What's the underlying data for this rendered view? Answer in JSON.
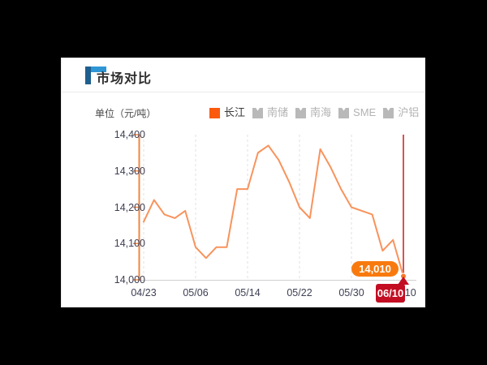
{
  "window": {
    "background_color": "#000000",
    "card_background_color": "#ffffff"
  },
  "header": {
    "title": "市场对比",
    "accent_color": "#2e96d5",
    "accent_dark_color": "#1d5f8e"
  },
  "chart_data": {
    "type": "line",
    "title": "市场对比",
    "unit_label": "单位（元/吨）",
    "legend_position": "top",
    "legend": [
      {
        "label": "长江",
        "active": true,
        "color": "#fb5a0e"
      },
      {
        "label": "南储",
        "active": false,
        "color": "#b9b9b9"
      },
      {
        "label": "南海",
        "active": false,
        "color": "#b9b9b9"
      },
      {
        "label": "SME",
        "active": false,
        "color": "#b9b9b9"
      },
      {
        "label": "沪铝",
        "active": false,
        "color": "#b9b9b9"
      }
    ],
    "x_tick_labels": [
      "04/23",
      "05/06",
      "05/14",
      "05/22",
      "05/30",
      "06/10"
    ],
    "tick_indices": [
      0,
      5,
      10,
      15,
      20,
      25
    ],
    "y_tick_labels": [
      "14,000",
      "14,100",
      "14,200",
      "14,300",
      "14,400"
    ],
    "ylim": [
      14000,
      14400
    ],
    "grid": "vertical-dashed",
    "axis_color": "#f28442",
    "series": [
      {
        "name": "长江",
        "color": "#f8935c",
        "values": [
          14160,
          14220,
          14180,
          14170,
          14190,
          14090,
          14060,
          14090,
          14090,
          14250,
          14250,
          14350,
          14370,
          14330,
          14270,
          14200,
          14170,
          14360,
          14310,
          14250,
          14200,
          14190,
          14180,
          14080,
          14110,
          14010
        ]
      }
    ],
    "marker": {
      "value": 14010,
      "value_label": "14,010",
      "date_label": "06/10",
      "tooltip_color": "#f87a0e",
      "badge_color": "#c30d23",
      "cursor_line_color": "#d95353",
      "dot_color": "#f8772a"
    }
  }
}
